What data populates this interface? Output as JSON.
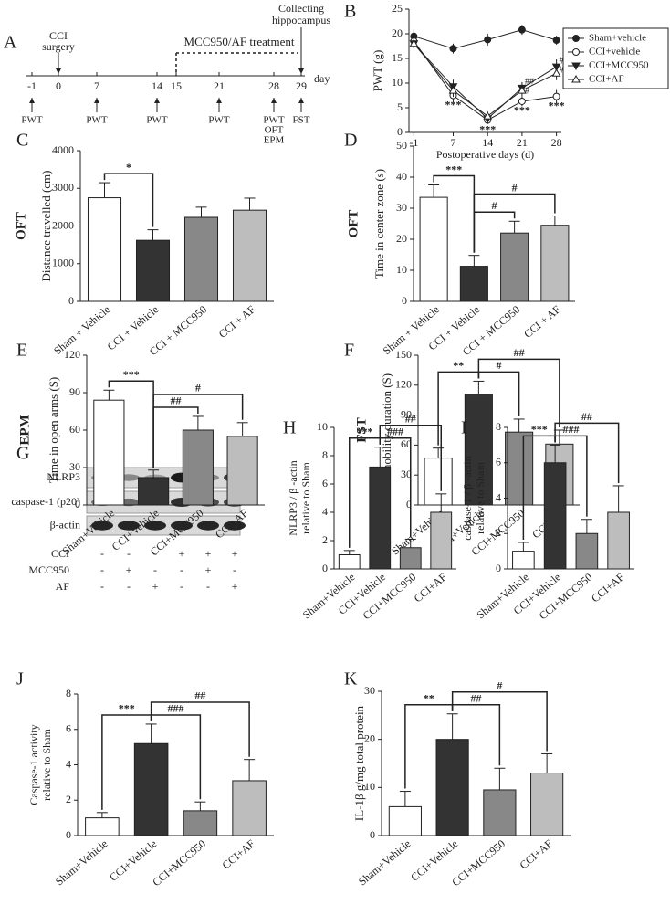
{
  "timeline": {
    "panel": "A",
    "days": [
      "-1",
      "0",
      "7",
      "14",
      "15",
      "21",
      "28",
      "29"
    ],
    "unit": "day",
    "surgery": [
      "CCI",
      "surgery"
    ],
    "treatment": "MCC950/AF treatment",
    "collection": [
      "Collecting",
      "hippocampus"
    ],
    "tests": [
      [
        "PWT"
      ],
      [],
      [
        "PWT"
      ],
      [
        "PWT"
      ],
      [],
      [
        "PWT"
      ],
      [
        "PWT",
        "OFT",
        "EPM"
      ],
      [
        "FST"
      ]
    ]
  },
  "blot": {
    "panel": "G",
    "bands": [
      "NLRP3",
      "caspase-1 (p20)",
      "β-actin"
    ],
    "conditions": [
      {
        "name": "CCI",
        "signs": [
          "-",
          "-",
          "-",
          "+",
          "+",
          "+"
        ]
      },
      {
        "name": "MCC950",
        "signs": [
          "-",
          "+",
          "-",
          "-",
          "+",
          "-"
        ]
      },
      {
        "name": "AF",
        "signs": [
          "-",
          "-",
          "+",
          "-",
          "-",
          "+"
        ]
      }
    ]
  },
  "chart_data": [
    {
      "type": "line",
      "panel": "B",
      "xlabel": "Postoperative days (d)",
      "ylabel": "PWT (g)",
      "x": [
        -1,
        7,
        14,
        21,
        28
      ],
      "xlim": [
        -2,
        29
      ],
      "xticks": [
        -1,
        7,
        14,
        21,
        28
      ],
      "ylim": [
        0,
        25
      ],
      "yticks": [
        0,
        5,
        10,
        15,
        20,
        25
      ],
      "series": [
        {
          "name": "Sham+vehicle",
          "color": "#222",
          "marker": "circle-filled",
          "values": [
            19.5,
            17,
            18.8,
            20.8,
            18.7
          ],
          "errors": [
            1.4,
            1,
            1.2,
            1,
            0.9
          ]
        },
        {
          "name": "CCI+vehicle",
          "color": "#222",
          "marker": "circle-open",
          "values": [
            18.5,
            7.5,
            2.5,
            6.3,
            7.3
          ],
          "errors": [
            1,
            1.2,
            0.8,
            1,
            1.3
          ]
        },
        {
          "name": "CCI+MCC950",
          "color": "#222",
          "marker": "triangle-down-filled",
          "values": [
            18,
            9.3,
            2.8,
            9,
            13.3
          ],
          "errors": [
            1,
            1.4,
            1,
            1.2,
            1.5
          ]
        },
        {
          "name": "CCI+AF",
          "color": "#222",
          "marker": "triangle-up-open",
          "values": [
            18,
            8.5,
            3.3,
            8.5,
            12
          ],
          "errors": [
            1,
            1.3,
            1,
            1.2,
            1.4
          ]
        }
      ],
      "annotations": [
        {
          "x": 7,
          "text": "***"
        },
        {
          "x": 14,
          "text": "***"
        },
        {
          "x": 21,
          "text": "***"
        },
        {
          "x": 28,
          "text": "***"
        },
        {
          "x": 21,
          "text": "##"
        },
        {
          "x": 21,
          "text": "#"
        },
        {
          "x": 28,
          "text": "##"
        },
        {
          "x": 28,
          "text": "##"
        }
      ]
    },
    {
      "type": "bar",
      "panel": "C",
      "label": "OFT",
      "ylabel": "Distance travelled (cm)",
      "categories": [
        "Sham + Vehicle",
        "CCI + Vehicle",
        "CCI + MCC950",
        "CCI + AF"
      ],
      "values": [
        2750,
        1620,
        2230,
        2420
      ],
      "errors": [
        400,
        280,
        270,
        320
      ],
      "colors": [
        "#ffffff",
        "#333333",
        "#888888",
        "#bdbdbd"
      ],
      "ylim": [
        0,
        4000
      ],
      "yticks": [
        0,
        1000,
        2000,
        3000,
        4000
      ],
      "brackets": [
        {
          "between": [
            "Sham + Vehicle",
            "CCI + Vehicle"
          ],
          "text": "*"
        }
      ]
    },
    {
      "type": "bar",
      "panel": "D",
      "label": "OFT",
      "ylabel": "Time in center zone (s)",
      "categories": [
        "Sham + Vehicle",
        "CCI + Vehicle",
        "CCI + MCC950",
        "CCI + AF"
      ],
      "values": [
        33.5,
        11.3,
        22,
        24.5
      ],
      "errors": [
        4,
        3.5,
        3.8,
        3
      ],
      "colors": [
        "#ffffff",
        "#333333",
        "#888888",
        "#bdbdbd"
      ],
      "ylim": [
        0,
        50
      ],
      "yticks": [
        0,
        10,
        20,
        30,
        40,
        50
      ],
      "brackets": [
        {
          "between": [
            "Sham + Vehicle",
            "CCI + Vehicle"
          ],
          "text": "***"
        },
        {
          "between": [
            "CCI + Vehicle",
            "CCI + MCC950"
          ],
          "text": "#"
        },
        {
          "between": [
            "CCI + Vehicle",
            "CCI + AF"
          ],
          "text": "#"
        }
      ]
    },
    {
      "type": "bar",
      "panel": "E",
      "label": "EPM",
      "ylabel": "Time in open arms (S)",
      "categories": [
        "Sham+Vehicle",
        "CCI+Vehicle",
        "CCI+MCC950",
        "CCI+AF"
      ],
      "values": [
        84,
        22,
        60,
        55
      ],
      "errors": [
        8,
        6,
        11,
        11
      ],
      "colors": [
        "#ffffff",
        "#333333",
        "#888888",
        "#bdbdbd"
      ],
      "ylim": [
        0,
        120
      ],
      "yticks": [
        0,
        30,
        60,
        90,
        120
      ],
      "brackets": [
        {
          "between": [
            "Sham+Vehicle",
            "CCI+Vehicle"
          ],
          "text": "***"
        },
        {
          "between": [
            "CCI+Vehicle",
            "CCI+MCC950"
          ],
          "text": "##"
        },
        {
          "between": [
            "CCI+Vehicle",
            "CCI+AF"
          ],
          "text": "#"
        }
      ]
    },
    {
      "type": "bar",
      "panel": "F",
      "label": "FST",
      "ylabel": "Immobility duration (S)",
      "categories": [
        "Sham+Vehicle",
        "CCI+Vehicle",
        "CCI+MCC950",
        "CCI+AF"
      ],
      "values": [
        47,
        111,
        73,
        61
      ],
      "errors": [
        10,
        13,
        13,
        14
      ],
      "colors": [
        "#ffffff",
        "#333333",
        "#888888",
        "#bdbdbd"
      ],
      "ylim": [
        0,
        150
      ],
      "yticks": [
        0,
        30,
        60,
        90,
        120,
        150
      ],
      "brackets": [
        {
          "between": [
            "Sham+Vehicle",
            "CCI+Vehicle"
          ],
          "text": "**"
        },
        {
          "between": [
            "CCI+Vehicle",
            "CCI+MCC950"
          ],
          "text": "#"
        },
        {
          "between": [
            "CCI+Vehicle",
            "CCI+AF"
          ],
          "text": "##"
        }
      ]
    },
    {
      "type": "bar",
      "panel": "H",
      "ylabel": [
        "NLRP3 / β -actin",
        "relative to Sham"
      ],
      "categories": [
        "Sham+Vehicle",
        "CCI+Vehicle",
        "CCI+MCC950",
        "CCI+AF"
      ],
      "values": [
        1,
        7.2,
        1.5,
        4
      ],
      "errors": [
        0.3,
        1.4,
        0.6,
        1.3
      ],
      "colors": [
        "#ffffff",
        "#333333",
        "#888888",
        "#bdbdbd"
      ],
      "ylim": [
        0,
        10
      ],
      "yticks": [
        0,
        2,
        4,
        6,
        8,
        10
      ],
      "brackets": [
        {
          "between": [
            "Sham+Vehicle",
            "CCI+Vehicle"
          ],
          "text": "***"
        },
        {
          "between": [
            "CCI+Vehicle",
            "CCI+MCC950"
          ],
          "text": "###"
        },
        {
          "between": [
            "CCI+Vehicle",
            "CCI+AF"
          ],
          "text": "##"
        }
      ]
    },
    {
      "type": "bar",
      "panel": "I",
      "ylabel": [
        "caspase-1 / β -actin",
        "relative to Sham"
      ],
      "categories": [
        "Sham+Vehicle",
        "CCI+Vehicle",
        "CCI+MCC950",
        "CCI+AF"
      ],
      "values": [
        1,
        6,
        2,
        3.2
      ],
      "errors": [
        0.5,
        1,
        0.8,
        1.5
      ],
      "colors": [
        "#ffffff",
        "#333333",
        "#888888",
        "#bdbdbd"
      ],
      "ylim": [
        0,
        8
      ],
      "yticks": [
        0,
        2,
        4,
        6,
        8
      ],
      "brackets": [
        {
          "between": [
            "Sham+Vehicle",
            "CCI+Vehicle"
          ],
          "text": "***"
        },
        {
          "between": [
            "CCI+Vehicle",
            "CCI+MCC950"
          ],
          "text": "###"
        },
        {
          "between": [
            "CCI+Vehicle",
            "CCI+AF"
          ],
          "text": "##"
        }
      ]
    },
    {
      "type": "bar",
      "panel": "J",
      "ylabel": [
        "Caspase-1 activity",
        "relative to Sham"
      ],
      "categories": [
        "Sham+Vehicle",
        "CCI+Vehicle",
        "CCI+MCC950",
        "CCI+AF"
      ],
      "values": [
        1,
        5.2,
        1.4,
        3.1
      ],
      "errors": [
        0.3,
        1.1,
        0.5,
        1.2
      ],
      "colors": [
        "#ffffff",
        "#333333",
        "#888888",
        "#bdbdbd"
      ],
      "ylim": [
        0,
        8
      ],
      "yticks": [
        0,
        2,
        4,
        6,
        8
      ],
      "brackets": [
        {
          "between": [
            "Sham+Vehicle",
            "CCI+Vehicle"
          ],
          "text": "***"
        },
        {
          "between": [
            "CCI+Vehicle",
            "CCI+MCC950"
          ],
          "text": "###"
        },
        {
          "between": [
            "CCI+Vehicle",
            "CCI+AF"
          ],
          "text": "##"
        }
      ]
    },
    {
      "type": "bar",
      "panel": "K",
      "ylabel": "IL-1β g/mg total protein",
      "categories": [
        "Sham+Vehicle",
        "CCI+Vehicle",
        "CCI+MCC950",
        "CCI+AF"
      ],
      "values": [
        6,
        20,
        9.5,
        13
      ],
      "errors": [
        3.2,
        5.3,
        4.5,
        4
      ],
      "colors": [
        "#ffffff",
        "#333333",
        "#888888",
        "#bdbdbd"
      ],
      "ylim": [
        0,
        30
      ],
      "yticks": [
        0,
        10,
        20,
        30
      ],
      "brackets": [
        {
          "between": [
            "Sham+Vehicle",
            "CCI+Vehicle"
          ],
          "text": "**"
        },
        {
          "between": [
            "CCI+Vehicle",
            "CCI+MCC950"
          ],
          "text": "##"
        },
        {
          "between": [
            "CCI+Vehicle",
            "CCI+AF"
          ],
          "text": "#"
        }
      ]
    }
  ]
}
